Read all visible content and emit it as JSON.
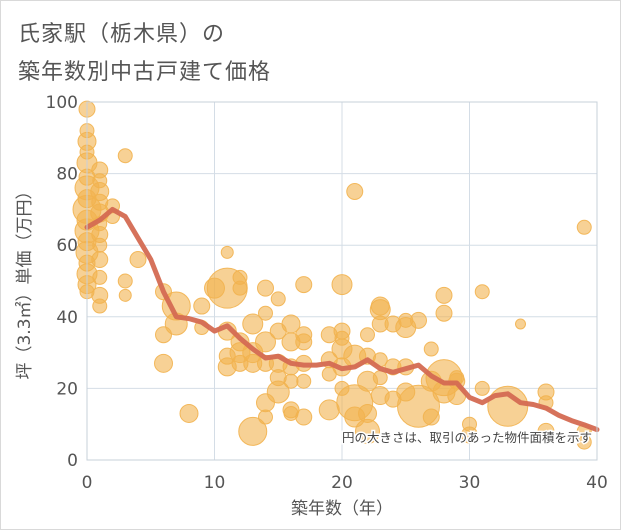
{
  "title": {
    "line1": "氏家駅（栃木県）の",
    "line2": "築年数別中古戸建て価格"
  },
  "chart_data": {
    "type": "scatter",
    "xlabel": "築年数（年）",
    "ylabel": "坪（3.3㎡）単価（万円）",
    "xlim": [
      0,
      40
    ],
    "ylim": [
      0,
      100
    ],
    "xticks": [
      0,
      10,
      20,
      30,
      40
    ],
    "yticks": [
      0,
      20,
      40,
      60,
      80,
      100
    ],
    "grid": true,
    "annotation": "円の大きさは、取引のあった物件面積を示す",
    "colors": {
      "bubble": "#f2b34f",
      "line": "#d46a52",
      "axis": "#555555",
      "grid": "#d4dde6"
    },
    "trend_line": {
      "x": [
        0,
        1,
        2,
        3,
        4,
        5,
        6,
        7,
        8,
        9,
        10,
        11,
        12,
        13,
        14,
        15,
        16,
        17,
        18,
        19,
        20,
        21,
        22,
        23,
        24,
        25,
        26,
        27,
        28,
        29,
        30,
        31,
        32,
        33,
        34,
        35,
        36,
        37,
        38,
        39,
        40
      ],
      "y": [
        65,
        67,
        70,
        68,
        62,
        56,
        47,
        40,
        39.5,
        38.5,
        36,
        37.5,
        34,
        31,
        28.5,
        29,
        27,
        26.5,
        26.5,
        27,
        25.5,
        26,
        28,
        25.5,
        24.5,
        25.5,
        26.5,
        23.5,
        21.5,
        21.5,
        17.5,
        16,
        18,
        18.5,
        16,
        15.5,
        14.5,
        12.5,
        11,
        9.8,
        8.5
      ]
    },
    "bubbles": [
      [
        0,
        98,
        8
      ],
      [
        0,
        92,
        7
      ],
      [
        0,
        89,
        9
      ],
      [
        0,
        86,
        7
      ],
      [
        0,
        83,
        10
      ],
      [
        0,
        79,
        8
      ],
      [
        0,
        76,
        12
      ],
      [
        0,
        73,
        9
      ],
      [
        0,
        70,
        14
      ],
      [
        0,
        67,
        10
      ],
      [
        0,
        64,
        12
      ],
      [
        0,
        61,
        9
      ],
      [
        0,
        58,
        11
      ],
      [
        0,
        55,
        8
      ],
      [
        0,
        52,
        10
      ],
      [
        0,
        49,
        9
      ],
      [
        0,
        47,
        7
      ],
      [
        1,
        81,
        8
      ],
      [
        1,
        78,
        7
      ],
      [
        1,
        75,
        9
      ],
      [
        1,
        72,
        8
      ],
      [
        1,
        69,
        9
      ],
      [
        1,
        66,
        7
      ],
      [
        1,
        63,
        8
      ],
      [
        1,
        60,
        7
      ],
      [
        1,
        56,
        8
      ],
      [
        1,
        51,
        7
      ],
      [
        1,
        46,
        8
      ],
      [
        1,
        43,
        7
      ],
      [
        2,
        71,
        7
      ],
      [
        2,
        68,
        7
      ],
      [
        3,
        85,
        7
      ],
      [
        3,
        50,
        7
      ],
      [
        3,
        46,
        6
      ],
      [
        4,
        56,
        8
      ],
      [
        6,
        47,
        8
      ],
      [
        6,
        35,
        8
      ],
      [
        6,
        27,
        9
      ],
      [
        7,
        43,
        14
      ],
      [
        7,
        38,
        11
      ],
      [
        8,
        13,
        9
      ],
      [
        9,
        43,
        8
      ],
      [
        9,
        37,
        7
      ],
      [
        10,
        48,
        10
      ],
      [
        11,
        58,
        6
      ],
      [
        11,
        48,
        20
      ],
      [
        11,
        36,
        9
      ],
      [
        11,
        29,
        8
      ],
      [
        11,
        26,
        9
      ],
      [
        12,
        51,
        7
      ],
      [
        12,
        48,
        7
      ],
      [
        12,
        33,
        9
      ],
      [
        12,
        30,
        10
      ],
      [
        12,
        27,
        8
      ],
      [
        13,
        38,
        10
      ],
      [
        13,
        30,
        10
      ],
      [
        13,
        27,
        9
      ],
      [
        13,
        8,
        14
      ],
      [
        14,
        48,
        8
      ],
      [
        14,
        41,
        7
      ],
      [
        14,
        33,
        10
      ],
      [
        14,
        27,
        8
      ],
      [
        14,
        16,
        9
      ],
      [
        14,
        12,
        7
      ],
      [
        15,
        45,
        7
      ],
      [
        15,
        36,
        8
      ],
      [
        15,
        27,
        9
      ],
      [
        15,
        23,
        8
      ],
      [
        15,
        19,
        11
      ],
      [
        16,
        38,
        9
      ],
      [
        16,
        33,
        9
      ],
      [
        16,
        26,
        8
      ],
      [
        16,
        22,
        7
      ],
      [
        16,
        14,
        8
      ],
      [
        16,
        13,
        7
      ],
      [
        17,
        49,
        8
      ],
      [
        17,
        35,
        8
      ],
      [
        17,
        33,
        8
      ],
      [
        17,
        27,
        8
      ],
      [
        17,
        22,
        7
      ],
      [
        17,
        12,
        8
      ],
      [
        19,
        35,
        8
      ],
      [
        19,
        28,
        8
      ],
      [
        19,
        24,
        7
      ],
      [
        19,
        14,
        10
      ],
      [
        20,
        49,
        10
      ],
      [
        20,
        36,
        8
      ],
      [
        20,
        34,
        7
      ],
      [
        20,
        31,
        10
      ],
      [
        20,
        26,
        9
      ],
      [
        20,
        20,
        7
      ],
      [
        21,
        75,
        8
      ],
      [
        21,
        29,
        11
      ],
      [
        21,
        16,
        18
      ],
      [
        21,
        12,
        10
      ],
      [
        22,
        35,
        7
      ],
      [
        22,
        29,
        8
      ],
      [
        22,
        22,
        10
      ],
      [
        22,
        13,
        9
      ],
      [
        22,
        8,
        12
      ],
      [
        23,
        43,
        9
      ],
      [
        23,
        42,
        10
      ],
      [
        23,
        38,
        8
      ],
      [
        23,
        28,
        7
      ],
      [
        23,
        23,
        7
      ],
      [
        23,
        18,
        9
      ],
      [
        24,
        38,
        8
      ],
      [
        24,
        26,
        8
      ],
      [
        24,
        17,
        8
      ],
      [
        25,
        39,
        7
      ],
      [
        25,
        37,
        10
      ],
      [
        25,
        26,
        8
      ],
      [
        25,
        19,
        9
      ],
      [
        26,
        39,
        8
      ],
      [
        26,
        15,
        21
      ],
      [
        27,
        31,
        7
      ],
      [
        27,
        22,
        10
      ],
      [
        27,
        12,
        8
      ],
      [
        28,
        46,
        8
      ],
      [
        28,
        41,
        8
      ],
      [
        28,
        23,
        18
      ],
      [
        28,
        19,
        11
      ],
      [
        29,
        23,
        7
      ],
      [
        29,
        22,
        8
      ],
      [
        29,
        18,
        9
      ],
      [
        30,
        10,
        7
      ],
      [
        30,
        7,
        8
      ],
      [
        31,
        47,
        7
      ],
      [
        31,
        20,
        7
      ],
      [
        33,
        15,
        20
      ],
      [
        34,
        38,
        5
      ],
      [
        36,
        19,
        8
      ],
      [
        36,
        16,
        7
      ],
      [
        36,
        8,
        8
      ],
      [
        39,
        65,
        7
      ],
      [
        39,
        8,
        7
      ],
      [
        39,
        5,
        7
      ]
    ]
  }
}
